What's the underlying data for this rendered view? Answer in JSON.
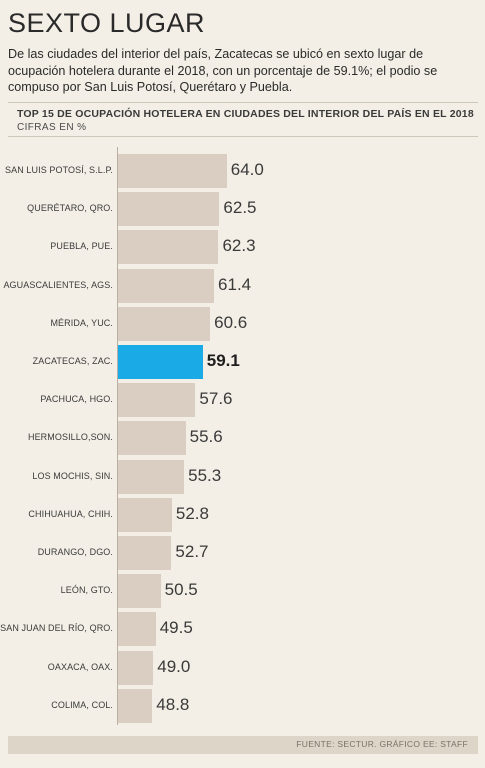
{
  "header": {
    "title": "SEXTO LUGAR",
    "description": "De las ciudades del interior del país, Zacatecas se ubicó en sexto lugar de ocupación hotelera durante el 2018, con un porcentaje de 59.1%; el podio se compuso por San Luis Potosí, Querétaro y Puebla."
  },
  "chart_data": {
    "type": "bar",
    "orientation": "horizontal",
    "title": "TOP 15 DE OCUPACIÓN HOTELERA EN CIUDADES DEL INTERIOR DEL PAÍS EN EL 2018",
    "subtitle": "CIFRAS EN %",
    "categories": [
      "SAN LUIS POTOSÍ, S.L.P.",
      "QUERÉTARO, QRO.",
      "PUEBLA, PUE.",
      "AGUASCALIENTES, AGS.",
      "MÉRIDA, YUC.",
      "ZACATECAS, ZAC.",
      "PACHUCA, HGO.",
      "HERMOSILLO,SON.",
      "LOS MOCHIS, SIN.",
      "CHIHUAHUA, CHIH.",
      "DURANGO, DGO.",
      "LEÓN, GTO.",
      "SAN JUAN DEL RÍO, QRO.",
      "OAXACA, OAX.",
      "COLIMA, COL."
    ],
    "values": [
      64.0,
      62.5,
      62.3,
      61.4,
      60.6,
      59.1,
      57.6,
      55.6,
      55.3,
      52.8,
      52.7,
      50.5,
      49.5,
      49.0,
      48.8
    ],
    "value_labels": [
      "64.0",
      "62.5",
      "62.3",
      "61.4",
      "60.6",
      "59.1",
      "57.6",
      "55.6",
      "55.3",
      "52.8",
      "52.7",
      "50.5",
      "49.5",
      "49.0",
      "48.8"
    ],
    "highlight": "ZACATECAS, ZAC.",
    "grid": false,
    "legend": "none",
    "colors": {
      "bar": "#d9cec1",
      "highlight": "#1aabe6",
      "background": "#f4efe6"
    }
  },
  "footer": {
    "source": "FUENTE: SECTUR. GRÁFICO EE: STAFF"
  }
}
